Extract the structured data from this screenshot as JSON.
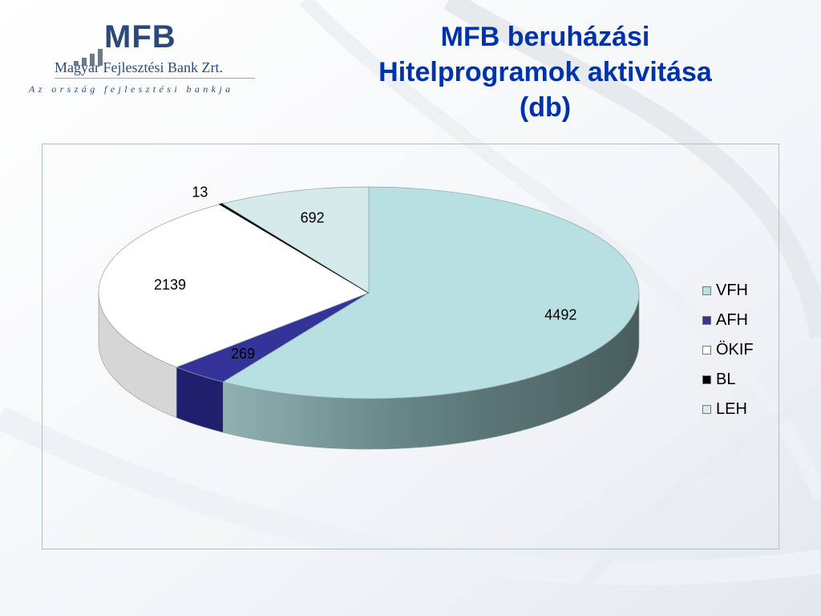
{
  "logo": {
    "word": "MFB",
    "bank_name": "Magyar Fejlesztési Bank Zrt.",
    "tagline": "Az ország fejlesztési bankja"
  },
  "title_lines": [
    "MFB beruházási",
    "Hitelprogramok aktivitása",
    "(db)"
  ],
  "chart_data": {
    "type": "pie",
    "title": "MFB beruházási Hitelprogramok aktivitása (db)",
    "three_d": true,
    "legend_position": "right",
    "categories": [
      "VFH",
      "AFH",
      "ÖKIF",
      "BL",
      "LEH"
    ],
    "values": [
      4492,
      269,
      2139,
      13,
      692
    ],
    "colors": [
      "#b8dfe1",
      "#333399",
      "#ffffff",
      "#000000",
      "#d6eaec"
    ],
    "side_colors": [
      "#6f8f91",
      "#1f1f6e",
      "#d6d6d6",
      "#000000",
      "#9fb4b6"
    ]
  }
}
